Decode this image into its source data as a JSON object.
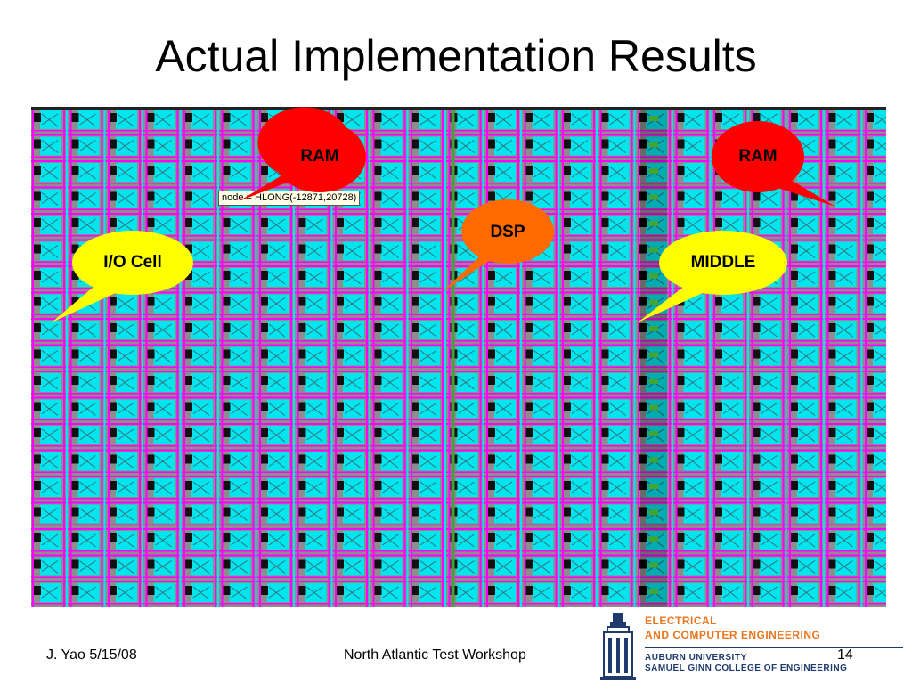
{
  "slide": {
    "title": "Actual Implementation Results",
    "node_tag": "node = HLONG(-12871,20728)"
  },
  "callouts": {
    "ram_left": "RAM",
    "ram_right": "RAM",
    "dsp": "DSP",
    "io_cell": "I/O Cell",
    "middle": "MIDDLE"
  },
  "colors": {
    "ram": "#ff0000",
    "dsp": "#ff6a00",
    "io_cell": "#ffff00",
    "middle": "#ffff00",
    "layout_bg": "#8d8d8d",
    "cell_fill": "#00e5ee",
    "routing": "#ff00ff",
    "dsp_column": "#3fa535"
  },
  "footer": {
    "author_date": "J. Yao 5/15/08",
    "event": "North Atlantic Test Workshop",
    "page_number": "14"
  },
  "logo": {
    "line1": "ELECTRICAL",
    "line2": "AND COMPUTER ENGINEERING",
    "line3": "AUBURN UNIVERSITY",
    "line4": "SAMUEL GINN COLLEGE OF ENGINEERING",
    "icon": "samford-hall-tower-icon"
  }
}
